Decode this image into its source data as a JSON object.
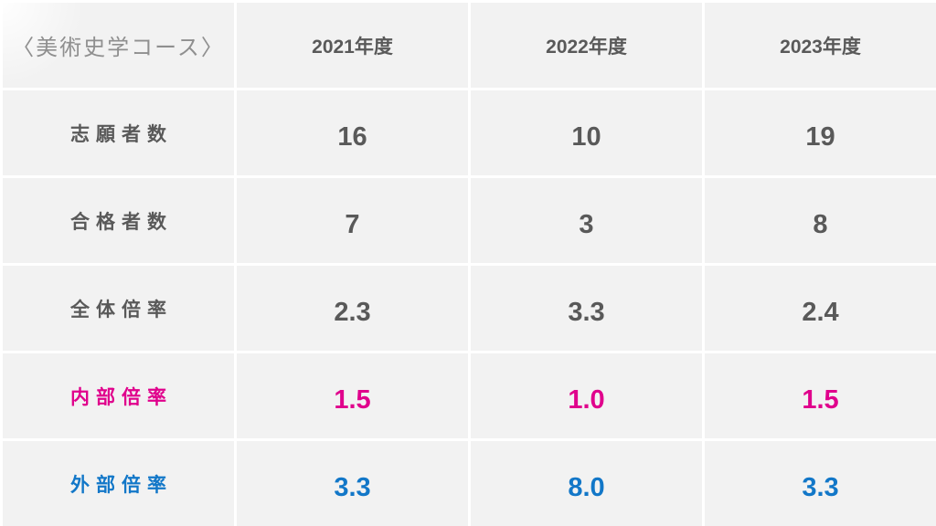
{
  "slide": {
    "title": "〈美術史学コース〉",
    "columns": [
      "2021年度",
      "2022年度",
      "2023年度"
    ],
    "rows": [
      {
        "label": "志願者数",
        "values": [
          "16",
          "10",
          "19"
        ]
      },
      {
        "label": "合格者数",
        "values": [
          "7",
          "3",
          "8"
        ]
      },
      {
        "label": "全体倍率",
        "values": [
          "2.3",
          "3.3",
          "2.4"
        ]
      },
      {
        "label": "内部倍率",
        "values": [
          "1.5",
          "1.0",
          "1.5"
        ]
      },
      {
        "label": "外部倍率",
        "values": [
          "3.3",
          "8.0",
          "3.3"
        ]
      }
    ]
  },
  "colors": {
    "cell_background": "#f2f2f2",
    "gridline": "#ffffff",
    "text_dark": "#595959",
    "title_gray": "#8f8f8f",
    "internal_ratio_pink": "#e0008c",
    "external_ratio_blue": "#1277c8"
  },
  "chart_data": {
    "type": "table",
    "title": "〈美術史学コース〉",
    "categories": [
      "2021年度",
      "2022年度",
      "2023年度"
    ],
    "series": [
      {
        "name": "志願者数",
        "values": [
          16,
          10,
          19
        ]
      },
      {
        "name": "合格者数",
        "values": [
          7,
          3,
          8
        ]
      },
      {
        "name": "全体倍率",
        "values": [
          2.3,
          3.3,
          2.4
        ]
      },
      {
        "name": "内部倍率",
        "values": [
          1.5,
          1.0,
          1.5
        ]
      },
      {
        "name": "外部倍率",
        "values": [
          3.3,
          8.0,
          3.3
        ]
      }
    ]
  }
}
